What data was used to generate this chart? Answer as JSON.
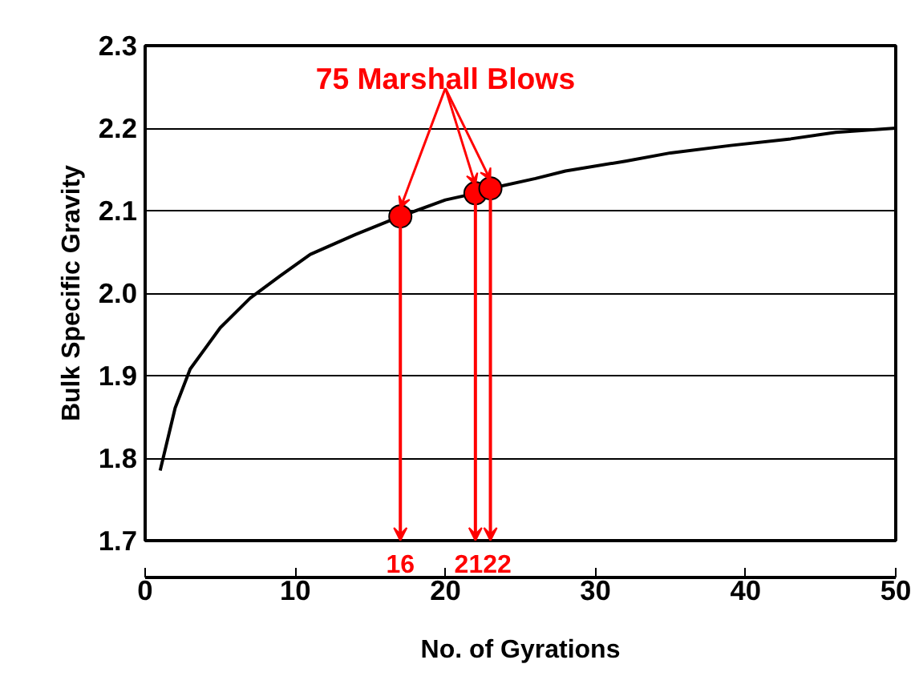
{
  "chart_data": {
    "type": "line",
    "xlabel": "No. of Gyrations",
    "ylabel": "Bulk Specific Gravity",
    "series": [
      {
        "type": "line",
        "color": "#000000",
        "x": [
          1,
          2,
          3,
          5,
          7,
          9,
          11,
          14,
          17,
          20,
          22,
          23,
          26,
          28,
          32,
          35,
          39,
          43,
          46,
          50
        ],
        "values": [
          1.785,
          1.861,
          1.908,
          1.958,
          1.994,
          2.021,
          2.047,
          2.071,
          2.093,
          2.113,
          2.121,
          2.127,
          2.139,
          2.148,
          2.16,
          2.17,
          2.179,
          2.187,
          2.195,
          2.2
        ]
      },
      {
        "type": "scatter",
        "color": "#ff0000",
        "marker": "circle",
        "x": [
          17,
          22,
          23
        ],
        "values": [
          2.093,
          2.121,
          2.127
        ]
      }
    ],
    "annotations": [
      {
        "text": "75 Marshall Blows",
        "x": 17,
        "y": 2.093
      },
      "16",
      "21",
      "22"
    ],
    "xlim": [
      0,
      50
    ],
    "ylim": [
      1.7,
      2.3
    ],
    "xticks": [
      0,
      10,
      20,
      30,
      40,
      50
    ],
    "yticks": [
      1.7,
      1.8,
      1.9,
      {
        "value": 2.0,
        "label": "2.0"
      },
      2.1,
      2.2,
      2.3
    ],
    "grid": "y",
    "line_style": "solid"
  }
}
